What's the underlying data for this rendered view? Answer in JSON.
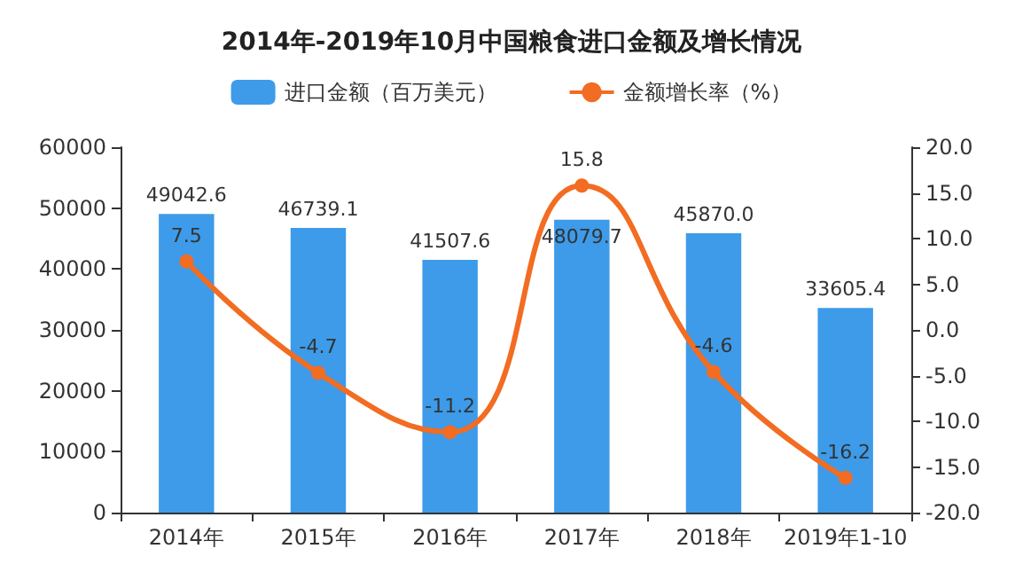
{
  "chart_data": {
    "type": "bar",
    "title": "2014年-2019年10月中国粮食进口金额及增长情况",
    "categories": [
      "2014年",
      "2015年",
      "2016年",
      "2017年",
      "2018年",
      "2019年1-10"
    ],
    "series": [
      {
        "name": "进口金额（百万美元）",
        "color": "#3d9be9",
        "values": [
          49042.6,
          46739.1,
          41507.6,
          48079.7,
          45870.0,
          33605.4
        ],
        "value_labels": [
          "49042.6",
          "46739.1",
          "41507.6",
          "48079.7",
          "45870.0",
          "33605.4"
        ]
      },
      {
        "name": "金额增长率（%）",
        "type": "line",
        "axis": "y2",
        "color": "#f26c22",
        "values": [
          7.5,
          -4.7,
          -11.2,
          15.8,
          -4.6,
          -16.2
        ],
        "value_labels": [
          "7.5",
          "-4.7",
          "-11.2",
          "15.8",
          "-4.6",
          "-16.2"
        ]
      }
    ],
    "ylim": [
      0,
      60000
    ],
    "yticks": [
      0,
      10000,
      20000,
      30000,
      40000,
      50000,
      60000
    ],
    "y2lim": [
      -20,
      20
    ],
    "y2ticks": [
      {
        "value": -20,
        "label": "-20.0"
      },
      {
        "value": -15,
        "label": "-15.0"
      },
      {
        "value": -10,
        "label": "-10.0"
      },
      {
        "value": -5,
        "label": "-5.0"
      },
      {
        "value": 0,
        "label": "0.0"
      },
      {
        "value": 5,
        "label": "5.0"
      },
      {
        "value": 10,
        "label": "10.0"
      },
      {
        "value": 15,
        "label": "15.0"
      },
      {
        "value": 20,
        "label": "20.0"
      }
    ],
    "legend": "top",
    "grid": false,
    "marker": "circle"
  }
}
